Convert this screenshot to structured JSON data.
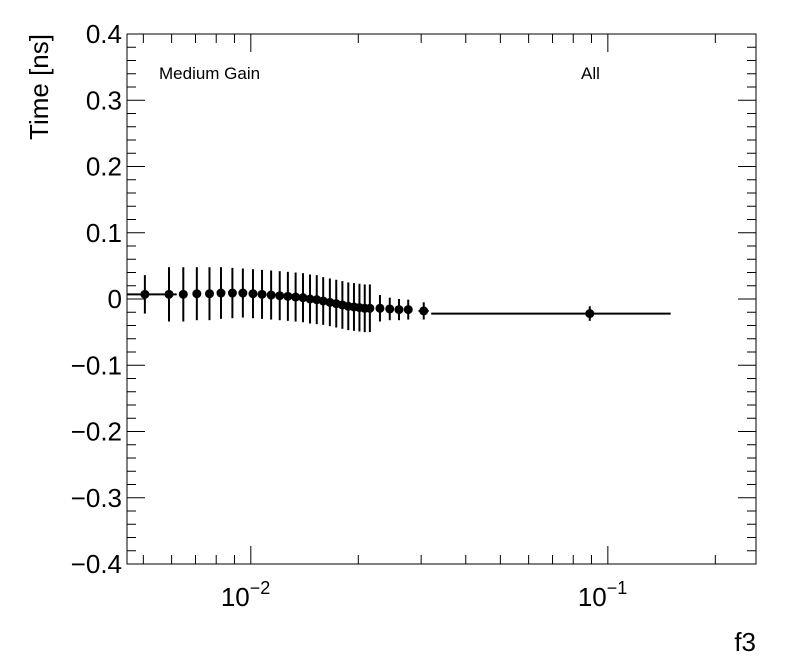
{
  "chart_data": {
    "type": "scatter",
    "xlabel": "f3",
    "ylabel": "Time [ns]",
    "x_scale": "log",
    "xlim": [
      0.0045,
      0.26
    ],
    "ylim": [
      -0.4,
      0.4
    ],
    "y_ticks": [
      {
        "value": 0.4,
        "label": "0.4"
      },
      {
        "value": 0.3,
        "label": "0.3"
      },
      {
        "value": 0.2,
        "label": "0.2"
      },
      {
        "value": 0.1,
        "label": "0.1"
      },
      {
        "value": 0.0,
        "label": "0"
      },
      {
        "value": -0.1,
        "label": "−0.1"
      },
      {
        "value": -0.2,
        "label": "−0.2"
      },
      {
        "value": -0.3,
        "label": "−0.3"
      },
      {
        "value": -0.4,
        "label": "−0.4"
      }
    ],
    "x_ticks": [
      {
        "value": 0.01,
        "base": "10",
        "exp": "−2"
      },
      {
        "value": 0.1,
        "base": "10",
        "exp": "−1"
      }
    ],
    "annotations": {
      "left": "Medium Gain",
      "right": "All"
    },
    "grid": false,
    "points": [
      {
        "x": 0.00505,
        "x_lo": 0.0045,
        "x_hi": 0.0056,
        "y": 0.007,
        "err": 0.029
      },
      {
        "x": 0.0059,
        "x_lo": 0.0056,
        "x_hi": 0.0062,
        "y": 0.007,
        "err": 0.041
      },
      {
        "x": 0.00647,
        "y": 0.007,
        "err": 0.041
      },
      {
        "x": 0.00706,
        "y": 0.008,
        "err": 0.04
      },
      {
        "x": 0.00766,
        "y": 0.008,
        "err": 0.04
      },
      {
        "x": 0.00825,
        "y": 0.009,
        "err": 0.039
      },
      {
        "x": 0.00888,
        "y": 0.009,
        "err": 0.038
      },
      {
        "x": 0.0095,
        "y": 0.009,
        "err": 0.037
      },
      {
        "x": 0.01014,
        "y": 0.008,
        "err": 0.037
      },
      {
        "x": 0.01075,
        "y": 0.007,
        "err": 0.037
      },
      {
        "x": 0.0114,
        "y": 0.006,
        "err": 0.037
      },
      {
        "x": 0.01205,
        "y": 0.005,
        "err": 0.037
      },
      {
        "x": 0.0127,
        "y": 0.004,
        "err": 0.037
      },
      {
        "x": 0.01335,
        "y": 0.003,
        "err": 0.037
      },
      {
        "x": 0.014,
        "y": 0.002,
        "err": 0.037
      },
      {
        "x": 0.01465,
        "y": 0.0,
        "err": 0.037
      },
      {
        "x": 0.0153,
        "y": -0.001,
        "err": 0.037
      },
      {
        "x": 0.01595,
        "y": -0.003,
        "err": 0.036
      },
      {
        "x": 0.01665,
        "y": -0.005,
        "err": 0.036
      },
      {
        "x": 0.01735,
        "y": -0.007,
        "err": 0.036
      },
      {
        "x": 0.01805,
        "y": -0.009,
        "err": 0.036
      },
      {
        "x": 0.01875,
        "y": -0.011,
        "err": 0.036
      },
      {
        "x": 0.01945,
        "y": -0.012,
        "err": 0.036
      },
      {
        "x": 0.02015,
        "y": -0.013,
        "err": 0.036
      },
      {
        "x": 0.02085,
        "y": -0.014,
        "err": 0.036
      },
      {
        "x": 0.02155,
        "y": -0.014,
        "err": 0.036
      },
      {
        "x": 0.023,
        "y": -0.014,
        "err": 0.02
      },
      {
        "x": 0.0245,
        "y": -0.015,
        "err": 0.017
      },
      {
        "x": 0.026,
        "y": -0.016,
        "err": 0.016
      },
      {
        "x": 0.0276,
        "y": -0.016,
        "err": 0.015
      },
      {
        "x": 0.0305,
        "x_lo": 0.0295,
        "x_hi": 0.0315,
        "y": -0.018,
        "err": 0.013
      },
      {
        "x": 0.089,
        "x_lo": 0.032,
        "x_hi": 0.15,
        "y": -0.022,
        "err": 0.011
      }
    ]
  }
}
